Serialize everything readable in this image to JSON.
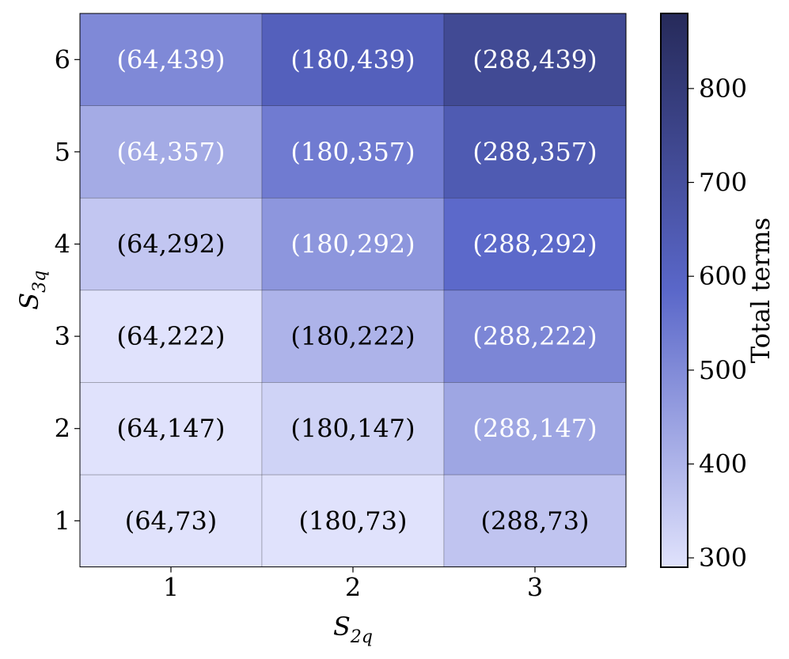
{
  "chart_data": {
    "type": "heatmap",
    "x_tick_labels": [
      "1",
      "2",
      "3"
    ],
    "y_tick_labels": [
      "1",
      "2",
      "3",
      "4",
      "5",
      "6"
    ],
    "xlabel": {
      "main": "S",
      "sub": "2q"
    },
    "ylabel": {
      "main": "S",
      "sub": "3q"
    },
    "colorbar": {
      "label": "Total terms",
      "range": [
        290,
        880
      ],
      "ticks": [
        300,
        400,
        500,
        600,
        700,
        800
      ],
      "color_low": "#e0e2fc",
      "color_mid": "#5a67c9",
      "color_high": "#262a5a"
    },
    "s2q_values": [
      64,
      180,
      288
    ],
    "s3q_values": [
      73,
      147,
      222,
      292,
      357,
      439
    ],
    "cells": [
      [
        {
          "label": "(64,73)",
          "total": 137
        },
        {
          "label": "(180,73)",
          "total": 253
        },
        {
          "label": "(288,73)",
          "total": 361
        }
      ],
      [
        {
          "label": "(64,147)",
          "total": 211
        },
        {
          "label": "(180,147)",
          "total": 327
        },
        {
          "label": "(288,147)",
          "total": 435
        }
      ],
      [
        {
          "label": "(64,222)",
          "total": 286
        },
        {
          "label": "(180,222)",
          "total": 402
        },
        {
          "label": "(288,222)",
          "total": 510
        }
      ],
      [
        {
          "label": "(64,292)",
          "total": 356
        },
        {
          "label": "(180,292)",
          "total": 472
        },
        {
          "label": "(288,292)",
          "total": 580
        }
      ],
      [
        {
          "label": "(64,357)",
          "total": 421
        },
        {
          "label": "(180,357)",
          "total": 537
        },
        {
          "label": "(288,357)",
          "total": 645
        }
      ],
      [
        {
          "label": "(64,439)",
          "total": 503
        },
        {
          "label": "(180,439)",
          "total": 619
        },
        {
          "label": "(288,439)",
          "total": 727
        }
      ]
    ],
    "text_color_dark": "#000000",
    "text_color_light": "#ffffff"
  }
}
